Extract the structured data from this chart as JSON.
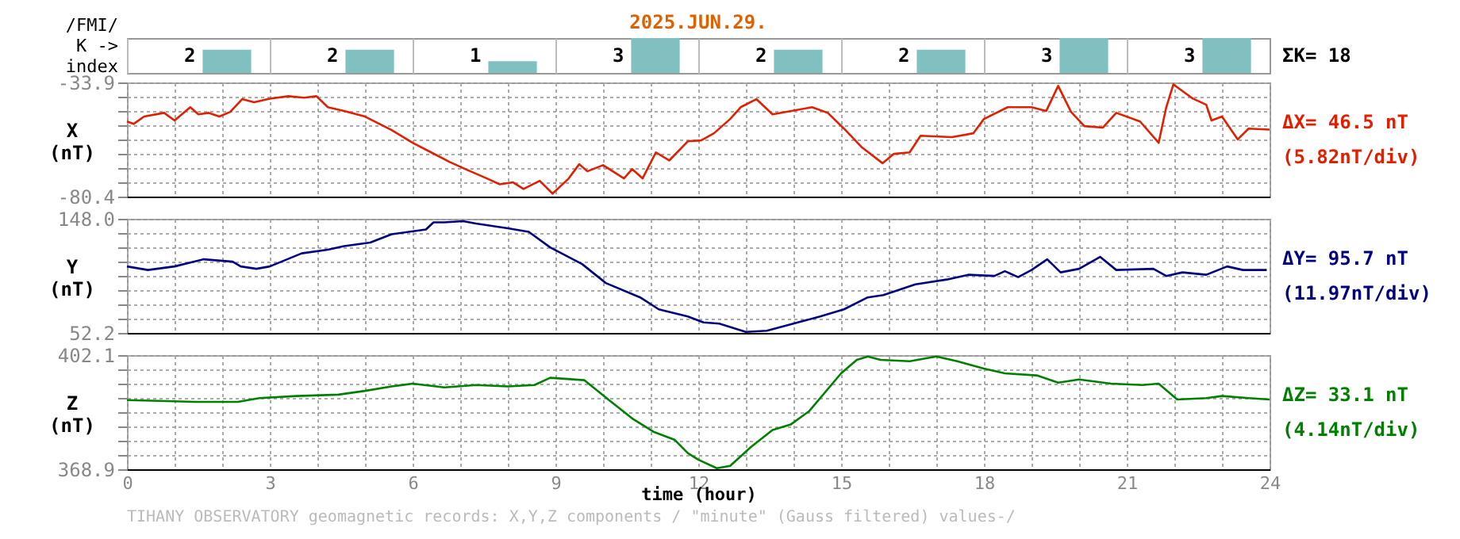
{
  "chart_data": [
    {
      "type": "bar",
      "title": "2025.JUN.29.",
      "ylabel": "/FMI/\nK ->\nindex",
      "categories": [
        null,
        null,
        null,
        null,
        null,
        null,
        null,
        null
      ],
      "values": [
        2,
        2,
        1,
        3,
        2,
        2,
        3,
        3
      ],
      "colors": [
        "#80c0c0",
        "#80c0c0",
        "#80c0c0",
        "#80c0c0",
        "#80c0c0",
        "#80c0c0",
        "#80c0c0",
        "#80c0c0"
      ],
      "data_labels": true,
      "annotations": [
        "ΣK= 18"
      ]
    },
    {
      "type": "line",
      "ylabel": "X\n(nT)",
      "x": [
        0,
        0.14,
        0.36,
        0.78,
        1.0,
        1.33,
        1.5,
        1.72,
        1.94,
        2.17,
        2.42,
        2.67,
        3.0,
        3.39,
        3.72,
        3.98,
        4.22,
        4.56,
        5.0,
        5.56,
        6.0,
        6.39,
        6.78,
        7.11,
        7.56,
        7.83,
        8.11,
        8.33,
        8.67,
        8.94,
        9.28,
        9.5,
        9.67,
        10.0,
        10.44,
        10.61,
        10.83,
        11.11,
        11.39,
        11.78,
        12.06,
        12.33,
        12.67,
        12.89,
        13.22,
        13.56,
        14.39,
        14.72,
        15.06,
        15.44,
        15.87,
        16.11,
        16.44,
        16.67,
        17.33,
        17.78,
        18.0,
        18.5,
        19.0,
        19.31,
        19.56,
        19.83,
        20.11,
        20.5,
        20.78,
        21.28,
        21.67,
        21.83,
        21.98,
        22.39,
        22.67,
        22.78,
        23.0,
        23.33,
        23.56,
        24.0
      ],
      "series": [
        {
          "color": "#e02000",
          "values": [
            -49.8,
            -50.8,
            -47.8,
            -46.3,
            -49.4,
            -44.0,
            -46.9,
            -46.3,
            -47.8,
            -45.9,
            -40.7,
            -42.0,
            -40.5,
            -39.5,
            -40.1,
            -39.5,
            -44.0,
            -45.5,
            -47.8,
            -53.3,
            -58.5,
            -62.4,
            -66.3,
            -69.2,
            -73.0,
            -75.4,
            -74.6,
            -77.3,
            -74.0,
            -79.2,
            -73.0,
            -67.2,
            -70.1,
            -67.6,
            -73.0,
            -69.2,
            -73.0,
            -62.4,
            -65.7,
            -57.9,
            -57.5,
            -54.6,
            -48.8,
            -44.0,
            -40.7,
            -46.9,
            -44.0,
            -46.3,
            -52.7,
            -60.4,
            -66.8,
            -63.0,
            -62.4,
            -55.6,
            -56.2,
            -54.6,
            -48.8,
            -44.0,
            -44.0,
            -45.5,
            -35.3,
            -45.9,
            -51.7,
            -52.3,
            -46.3,
            -49.8,
            -58.5,
            -44.0,
            -34.7,
            -40.5,
            -43.0,
            -49.4,
            -47.8,
            -57.1,
            -52.7,
            -53.1
          ]
        }
      ],
      "xlim": [
        0,
        24
      ],
      "xticks": [
        0,
        {
          "value": 1,
          "label": null
        },
        {
          "value": 2,
          "label": null
        },
        3,
        {
          "value": 4,
          "label": null
        },
        {
          "value": 5,
          "label": null
        },
        6,
        {
          "value": 7,
          "label": null
        },
        {
          "value": 8,
          "label": null
        },
        9,
        {
          "value": 10,
          "label": null
        },
        {
          "value": 11,
          "label": null
        },
        12,
        {
          "value": 13,
          "label": null
        },
        {
          "value": 14,
          "label": null
        },
        15,
        {
          "value": 16,
          "label": null
        },
        {
          "value": 17,
          "label": null
        },
        18,
        {
          "value": 19,
          "label": null
        },
        {
          "value": 20,
          "label": null
        },
        21,
        {
          "value": 22,
          "label": null
        },
        {
          "value": 23,
          "label": null
        },
        24
      ],
      "ylim": [
        -80.4,
        -33.9
      ],
      "yticks": [
        -80.4,
        {
          "value": -74.59,
          "label": null
        },
        {
          "value": -68.78,
          "label": null
        },
        {
          "value": -62.96,
          "label": null
        },
        {
          "value": -57.15,
          "label": null
        },
        {
          "value": -51.34,
          "label": null
        },
        {
          "value": -45.53,
          "label": null
        },
        {
          "value": -39.71,
          "label": null
        },
        -33.9
      ],
      "grid": true,
      "tick_labels": "y",
      "annotations": [
        "ΔX= 46.5 nT",
        "(5.82nT/div)"
      ]
    },
    {
      "type": "line",
      "ylabel": "Y\n(nT)",
      "x": [
        0,
        0.44,
        1.0,
        1.61,
        2.22,
        2.39,
        2.72,
        3.0,
        3.67,
        4.22,
        4.56,
        5.11,
        5.56,
        6.28,
        6.44,
        6.67,
        7.06,
        7.33,
        8.0,
        8.44,
        8.89,
        9.56,
        10.06,
        10.78,
        11.17,
        11.78,
        12.11,
        12.44,
        13.0,
        13.44,
        14.0,
        14.56,
        15.06,
        15.56,
        15.89,
        16.56,
        17.22,
        17.67,
        18.22,
        18.44,
        18.72,
        19.0,
        19.33,
        19.61,
        20.0,
        20.44,
        20.78,
        21.56,
        21.83,
        22.17,
        22.67,
        23.11,
        23.44,
        23.94
      ],
      "series": [
        {
          "color": "#000080",
          "values": [
            108,
            105,
            108,
            114,
            112,
            108,
            106,
            108,
            119,
            122,
            125,
            128,
            135,
            139,
            145,
            145,
            146,
            144,
            140,
            137,
            124,
            110,
            94,
            82,
            72,
            66,
            61,
            60,
            53,
            54,
            60,
            66,
            72,
            82,
            84,
            93,
            97,
            101,
            100,
            104,
            99,
            105,
            114,
            103,
            106,
            116,
            105,
            106,
            100,
            103,
            101,
            108,
            105,
            105
          ]
        }
      ],
      "xlim": [
        0,
        24
      ],
      "xticks": [
        0,
        {
          "value": 1,
          "label": null
        },
        {
          "value": 2,
          "label": null
        },
        3,
        {
          "value": 4,
          "label": null
        },
        {
          "value": 5,
          "label": null
        },
        6,
        {
          "value": 7,
          "label": null
        },
        {
          "value": 8,
          "label": null
        },
        9,
        {
          "value": 10,
          "label": null
        },
        {
          "value": 11,
          "label": null
        },
        12,
        {
          "value": 13,
          "label": null
        },
        {
          "value": 14,
          "label": null
        },
        15,
        {
          "value": 16,
          "label": null
        },
        {
          "value": 17,
          "label": null
        },
        18,
        {
          "value": 19,
          "label": null
        },
        {
          "value": 20,
          "label": null
        },
        21,
        {
          "value": 22,
          "label": null
        },
        {
          "value": 23,
          "label": null
        },
        24
      ],
      "ylim": [
        52.2,
        148.0
      ],
      "yticks": [
        52.2,
        {
          "value": 64.18,
          "label": null
        },
        {
          "value": 76.15,
          "label": null
        },
        {
          "value": 88.13,
          "label": null
        },
        {
          "value": 100.1,
          "label": null
        },
        {
          "value": 112.08,
          "label": null
        },
        {
          "value": 124.05,
          "label": null
        },
        {
          "value": 136.03,
          "label": null
        },
        {
          "value": 148.0,
          "label": "148.0"
        }
      ],
      "grid": true,
      "tick_labels": "y",
      "annotations": [
        "ΔY= 95.7 nT",
        "(11.97nT/div)"
      ]
    },
    {
      "type": "line",
      "ylabel": "Z\n(nT)",
      "xlabel": "time (hour)",
      "x": [
        0,
        0.67,
        1.44,
        2.33,
        2.78,
        3.56,
        4.44,
        5.0,
        5.56,
        6.0,
        6.67,
        7.33,
        8.0,
        8.56,
        8.89,
        9.61,
        10.11,
        10.61,
        11.06,
        11.5,
        11.78,
        12.0,
        12.39,
        12.67,
        13.11,
        13.56,
        13.94,
        14.33,
        15.0,
        15.33,
        15.56,
        15.83,
        16.44,
        17.0,
        17.44,
        18.0,
        18.44,
        19.11,
        19.56,
        20.0,
        20.67,
        21.33,
        21.67,
        22.06,
        22.67,
        23.0,
        23.56,
        24.0
      ],
      "series": [
        {
          "color": "#008000",
          "values": [
            389.0,
            388.8,
            388.5,
            388.5,
            389.6,
            390.2,
            390.6,
            391.7,
            393.0,
            393.8,
            392.7,
            393.4,
            393.0,
            393.4,
            395.5,
            394.8,
            389.2,
            383.7,
            379.8,
            377.5,
            373.6,
            371.7,
            369.2,
            369.9,
            375.4,
            380.3,
            381.9,
            385.8,
            396.8,
            400.7,
            401.7,
            400.7,
            400.3,
            401.7,
            400.3,
            398.2,
            396.8,
            396.2,
            394.1,
            395.0,
            393.8,
            393.4,
            393.8,
            389.2,
            389.6,
            390.2,
            389.6,
            389.2
          ]
        }
      ],
      "xlim": [
        0,
        24
      ],
      "xticks": [
        0,
        {
          "value": 1,
          "label": null
        },
        {
          "value": 2,
          "label": null
        },
        3,
        {
          "value": 4,
          "label": null
        },
        {
          "value": 5,
          "label": null
        },
        6,
        {
          "value": 7,
          "label": null
        },
        {
          "value": 8,
          "label": null
        },
        9,
        {
          "value": 10,
          "label": null
        },
        {
          "value": 11,
          "label": null
        },
        12,
        {
          "value": 13,
          "label": null
        },
        {
          "value": 14,
          "label": null
        },
        15,
        {
          "value": 16,
          "label": null
        },
        {
          "value": 17,
          "label": null
        },
        18,
        {
          "value": 19,
          "label": null
        },
        {
          "value": 20,
          "label": null
        },
        21,
        {
          "value": 22,
          "label": null
        },
        {
          "value": 23,
          "label": null
        },
        24
      ],
      "ylim": [
        368.9,
        402.1
      ],
      "yticks": [
        368.9,
        {
          "value": 373.05,
          "label": null
        },
        {
          "value": 377.2,
          "label": null
        },
        {
          "value": 381.35,
          "label": null
        },
        {
          "value": 385.5,
          "label": null
        },
        {
          "value": 389.65,
          "label": null
        },
        {
          "value": 393.8,
          "label": null
        },
        {
          "value": 397.95,
          "label": null
        },
        402.1
      ],
      "grid": true,
      "annotations": [
        "ΔZ= 33.1 nT",
        "(4.14nT/div)",
        "TIHANY OBSERVATORY   geomagnetic records:  X,Y,Z  components   / \"minute\" (Gauss filtered) values-/"
      ]
    }
  ]
}
